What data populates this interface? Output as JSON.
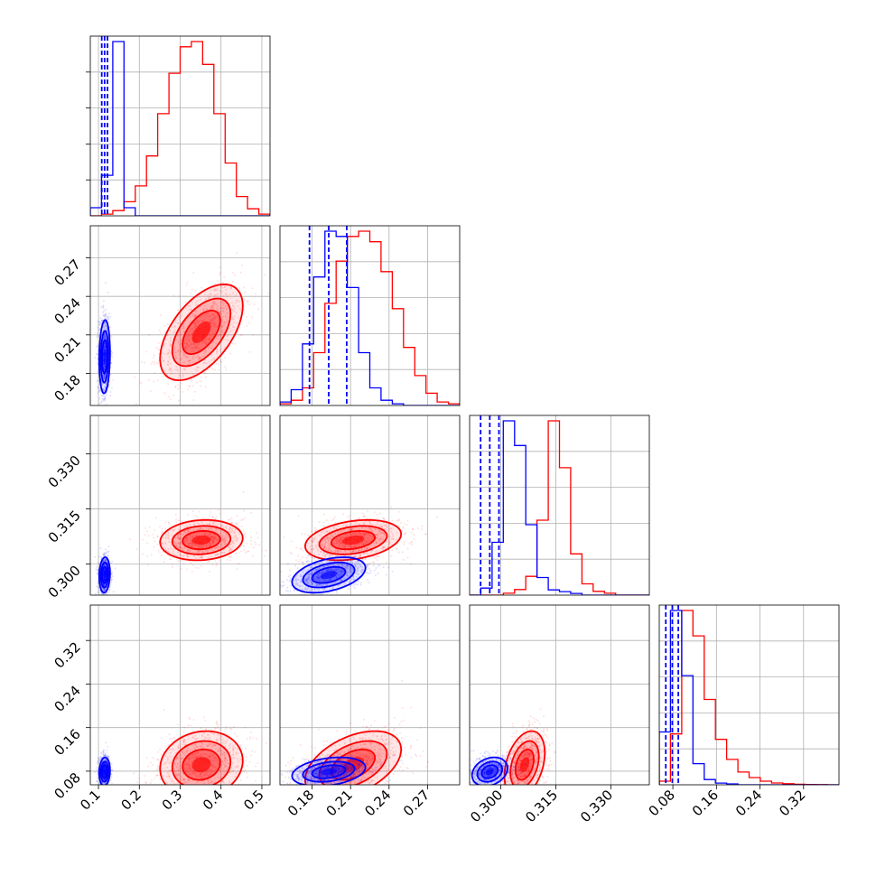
{
  "chart_data": {
    "type": "corner",
    "title": "",
    "parameters": [
      {
        "ticks": [
          "0.1",
          "0.2",
          "0.3",
          "0.4",
          "0.5"
        ],
        "range": [
          0.08,
          0.52
        ]
      },
      {
        "ticks": [
          "0.18",
          "0.21",
          "0.24",
          "0.27"
        ],
        "range": [
          0.155,
          0.295
        ]
      },
      {
        "ticks": [
          "0.300",
          "0.315",
          "0.330"
        ],
        "range": [
          0.2915,
          0.3405
        ]
      },
      {
        "ticks": [
          "0.08",
          "0.16",
          "0.24",
          "0.32"
        ],
        "range": [
          0.055,
          0.385
        ]
      }
    ],
    "series": [
      {
        "color": "#ff0000",
        "means": [
          0.352,
          0.212,
          0.3065,
          0.092
        ],
        "stds": [
          0.046,
          0.017,
          0.0025,
          0.028
        ],
        "correlations": {
          "1-0": 0.55,
          "2-0": 0.1,
          "2-1": 0.3,
          "3-0": 0.12,
          "3-1": 0.45,
          "3-2": 0.35
        },
        "quantile_lines": [],
        "histograms": [
          [
            0,
            1,
            3,
            8,
            17,
            34,
            58,
            81,
            96,
            99,
            86,
            58,
            30,
            11,
            4,
            1
          ],
          [
            1,
            3,
            10,
            30,
            58,
            82,
            96,
            99,
            93,
            76,
            55,
            33,
            17,
            7,
            2,
            1
          ],
          [
            0,
            0,
            0,
            1,
            3,
            10,
            40,
            93,
            68,
            22,
            6,
            2,
            1,
            0,
            0,
            0
          ],
          [
            2,
            28,
            96,
            82,
            47,
            25,
            14,
            7,
            4,
            2,
            1,
            0.6,
            0.3,
            0.2,
            0.1,
            0
          ]
        ]
      },
      {
        "color": "#0000ff",
        "means": [
          0.115,
          0.193,
          0.297,
          0.079
        ],
        "stds": [
          0.006,
          0.013,
          0.0022,
          0.012
        ],
        "correlations": {
          "1-0": 0.1,
          "2-0": 0.1,
          "2-1": 0.4,
          "3-0": 0.1,
          "3-1": 0.3,
          "3-2": 0.25
        },
        "quantile_lines": [
          [
            0.108,
            0.115,
            0.122
          ],
          [
            0.178,
            0.193,
            0.207
          ],
          [
            0.2945,
            0.297,
            0.2995
          ],
          [
            0.067,
            0.079,
            0.09
          ]
        ],
        "histograms": [
          [
            0.2,
            1,
            4.3,
            0.2,
            0,
            0,
            0,
            0,
            0,
            0,
            0,
            0,
            0,
            0,
            0,
            0
          ],
          [
            2,
            9,
            35,
            73,
            99,
            96,
            67,
            30,
            10,
            3,
            1,
            0,
            0,
            0,
            0,
            0
          ],
          [
            0,
            4,
            30,
            99,
            85,
            40,
            10,
            3,
            2,
            1,
            0,
            0,
            0,
            0,
            0,
            0
          ],
          [
            30,
            99,
            62,
            12,
            3,
            1,
            0.5,
            0,
            0,
            0,
            0,
            0,
            0,
            0,
            0,
            0
          ]
        ]
      }
    ],
    "contour_levels": [
      0.393,
      0.865,
      0.989
    ],
    "grid": true
  }
}
